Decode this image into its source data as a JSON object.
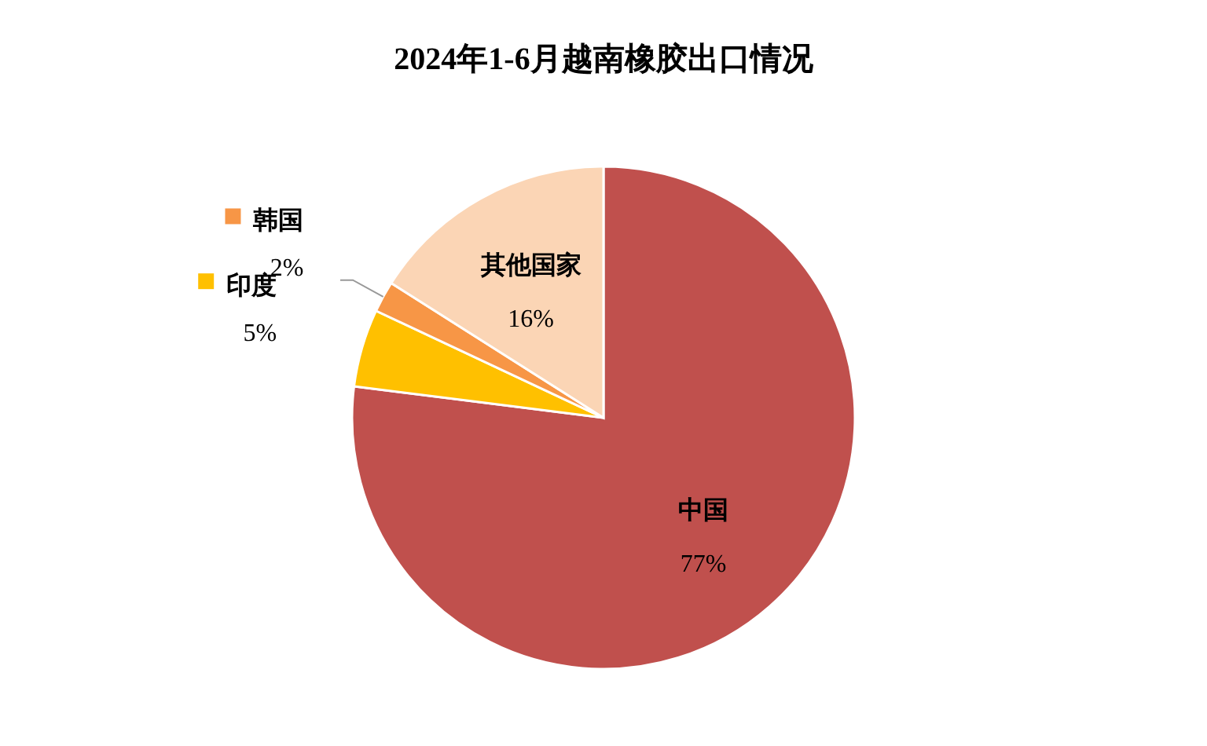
{
  "chart_data": {
    "type": "pie",
    "title": "2024年1-6月越南橡胶出口情况",
    "categories": [
      "中国",
      "印度",
      "韩国",
      "其他国家"
    ],
    "values": [
      77,
      5,
      2,
      16
    ],
    "value_labels": [
      "77%",
      "5%",
      "2%",
      "16%"
    ],
    "colors": [
      "#c0504d",
      "#ffc000",
      "#f79646",
      "#fbd5b5"
    ],
    "legend": "left"
  }
}
